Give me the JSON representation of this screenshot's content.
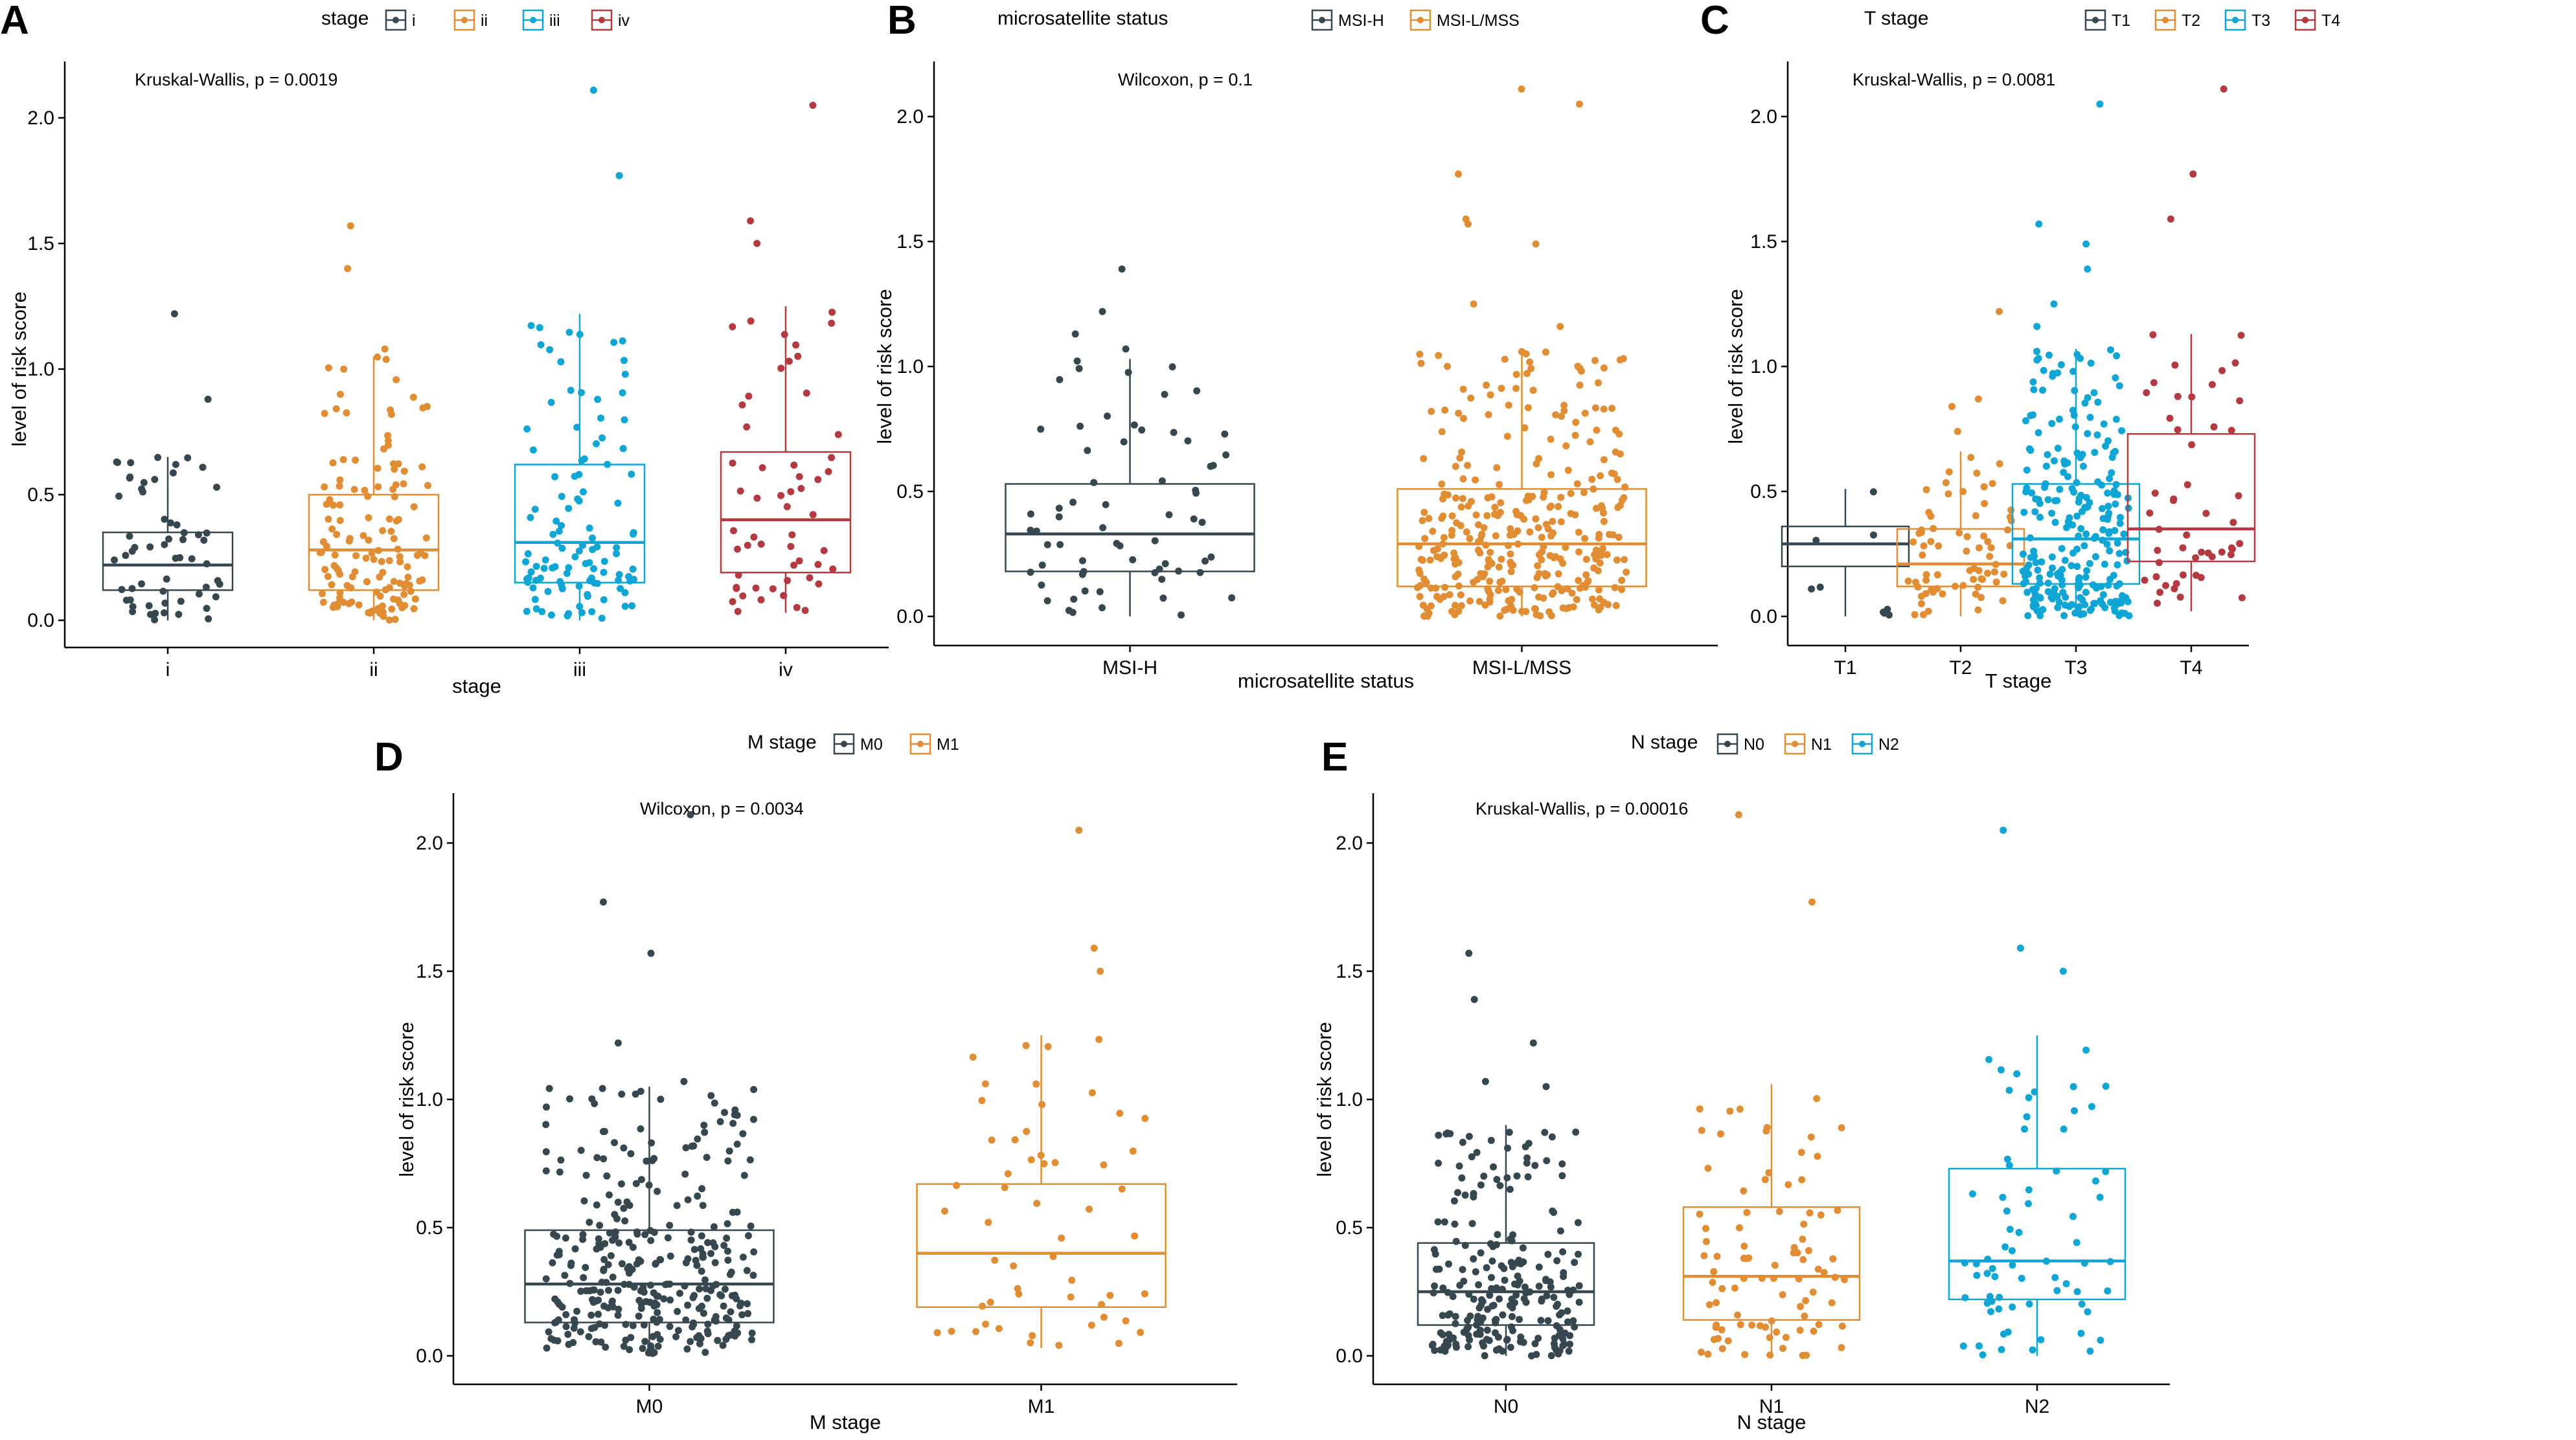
{
  "chart_data": [
    {
      "panel": "A",
      "type": "box",
      "legend_title": "stage",
      "legend_position": "top",
      "xlabel": "stage",
      "ylabel": "level of risk score",
      "ylim": [
        -0.1,
        2.2
      ],
      "yticks": [
        "0.0",
        "0.5",
        "1.0",
        "1.5",
        "2.0"
      ],
      "annotation": "Kruskal-Wallis, p = 0.0019",
      "groups": [
        {
          "name": "i",
          "color": "#37474F",
          "n": 60,
          "q1": 0.12,
          "median": 0.22,
          "q3": 0.35,
          "whisker_low": 0.0,
          "whisker_high": 0.65,
          "outliers": [
            0.88,
            1.22
          ]
        },
        {
          "name": "ii",
          "color": "#E18D34",
          "n": 140,
          "q1": 0.12,
          "median": 0.28,
          "q3": 0.5,
          "whisker_low": 0.0,
          "whisker_high": 1.05,
          "outliers": [
            1.08,
            1.4,
            1.57
          ]
        },
        {
          "name": "iii",
          "color": "#0FA5D4",
          "n": 110,
          "q1": 0.15,
          "median": 0.31,
          "q3": 0.62,
          "whisker_low": 0.0,
          "whisker_high": 1.22,
          "outliers": [
            1.77,
            2.11
          ]
        },
        {
          "name": "iv",
          "color": "#B23A40",
          "n": 55,
          "q1": 0.19,
          "median": 0.4,
          "q3": 0.67,
          "whisker_low": 0.03,
          "whisker_high": 1.25,
          "outliers": [
            1.5,
            1.59,
            2.05
          ]
        }
      ]
    },
    {
      "panel": "B",
      "type": "box",
      "legend_title": "microsatellite status",
      "legend_position": "top",
      "xlabel": "microsatellite status",
      "ylabel": "level of risk score",
      "ylim": [
        -0.1,
        2.2
      ],
      "yticks": [
        "0.0",
        "0.5",
        "1.0",
        "1.5",
        "2.0"
      ],
      "annotation": "Wilcoxon, p = 0.1",
      "groups": [
        {
          "name": "MSI-H",
          "color": "#37474F",
          "n": 65,
          "q1": 0.18,
          "median": 0.33,
          "q3": 0.53,
          "whisker_low": 0.0,
          "whisker_high": 1.03,
          "outliers": [
            1.07,
            1.13,
            1.22,
            1.39
          ]
        },
        {
          "name": "MSI-L/MSS",
          "color": "#E18D34",
          "n": 330,
          "q1": 0.12,
          "median": 0.29,
          "q3": 0.51,
          "whisker_low": 0.0,
          "whisker_high": 1.07,
          "outliers": [
            1.16,
            1.25,
            1.49,
            1.57,
            1.59,
            1.77,
            2.05,
            2.11
          ]
        }
      ]
    },
    {
      "panel": "C",
      "type": "box",
      "legend_title": "T stage",
      "legend_position": "top",
      "xlabel": "T stage",
      "ylabel": "level of risk score",
      "ylim": [
        -0.1,
        2.2
      ],
      "yticks": [
        "0.0",
        "0.5",
        "1.0",
        "1.5",
        "2.0"
      ],
      "annotation": "Kruskal-Wallis, p = 0.0081",
      "groups": [
        {
          "name": "T1",
          "color": "#37474F",
          "n": 9,
          "q1": 0.2,
          "median": 0.29,
          "q3": 0.36,
          "whisker_low": 0.0,
          "whisker_high": 0.51,
          "outliers": []
        },
        {
          "name": "T2",
          "color": "#E18D34",
          "n": 70,
          "q1": 0.12,
          "median": 0.21,
          "q3": 0.35,
          "whisker_low": 0.0,
          "whisker_high": 0.66,
          "outliers": [
            0.74,
            0.84,
            0.87,
            1.22
          ]
        },
        {
          "name": "T3",
          "color": "#0FA5D4",
          "n": 250,
          "q1": 0.13,
          "median": 0.31,
          "q3": 0.53,
          "whisker_low": 0.0,
          "whisker_high": 1.07,
          "outliers": [
            1.16,
            1.25,
            1.39,
            1.49,
            1.57,
            2.05
          ]
        },
        {
          "name": "T4",
          "color": "#B23A40",
          "n": 50,
          "q1": 0.22,
          "median": 0.35,
          "q3": 0.73,
          "whisker_low": 0.02,
          "whisker_high": 1.13,
          "outliers": [
            1.59,
            1.77,
            2.11
          ]
        }
      ]
    },
    {
      "panel": "D",
      "type": "box",
      "legend_title": "M stage",
      "legend_position": "top",
      "xlabel": "M stage",
      "ylabel": "level of risk score",
      "ylim": [
        -0.1,
        2.2
      ],
      "yticks": [
        "0.0",
        "0.5",
        "1.0",
        "1.5",
        "2.0"
      ],
      "annotation": "Wilcoxon, p = 0.0034",
      "groups": [
        {
          "name": "M0",
          "color": "#37474F",
          "n": 330,
          "q1": 0.13,
          "median": 0.28,
          "q3": 0.49,
          "whisker_low": 0.0,
          "whisker_high": 1.05,
          "outliers": [
            1.07,
            1.22,
            1.57,
            1.77,
            2.11
          ]
        },
        {
          "name": "M1",
          "color": "#E18D34",
          "n": 55,
          "q1": 0.19,
          "median": 0.4,
          "q3": 0.67,
          "whisker_low": 0.03,
          "whisker_high": 1.25,
          "outliers": [
            1.5,
            1.59,
            2.05
          ]
        }
      ]
    },
    {
      "panel": "E",
      "type": "box",
      "legend_title": "N stage",
      "legend_position": "top",
      "xlabel": "N stage",
      "ylabel": "level of risk score",
      "ylim": [
        -0.1,
        2.2
      ],
      "yticks": [
        "0.0",
        "0.5",
        "1.0",
        "1.5",
        "2.0"
      ],
      "annotation": "Kruskal-Wallis, p = 0.00016",
      "groups": [
        {
          "name": "N0",
          "color": "#37474F",
          "n": 230,
          "q1": 0.12,
          "median": 0.25,
          "q3": 0.44,
          "whisker_low": 0.0,
          "whisker_high": 0.9,
          "outliers": [
            1.05,
            1.07,
            1.22,
            1.39,
            1.57
          ]
        },
        {
          "name": "N1",
          "color": "#E18D34",
          "n": 90,
          "q1": 0.14,
          "median": 0.31,
          "q3": 0.58,
          "whisker_low": 0.0,
          "whisker_high": 1.06,
          "outliers": [
            1.77,
            2.11
          ]
        },
        {
          "name": "N2",
          "color": "#0FA5D4",
          "n": 70,
          "q1": 0.22,
          "median": 0.37,
          "q3": 0.73,
          "whisker_low": 0.0,
          "whisker_high": 1.25,
          "outliers": [
            1.5,
            1.59,
            2.05
          ]
        }
      ]
    }
  ]
}
